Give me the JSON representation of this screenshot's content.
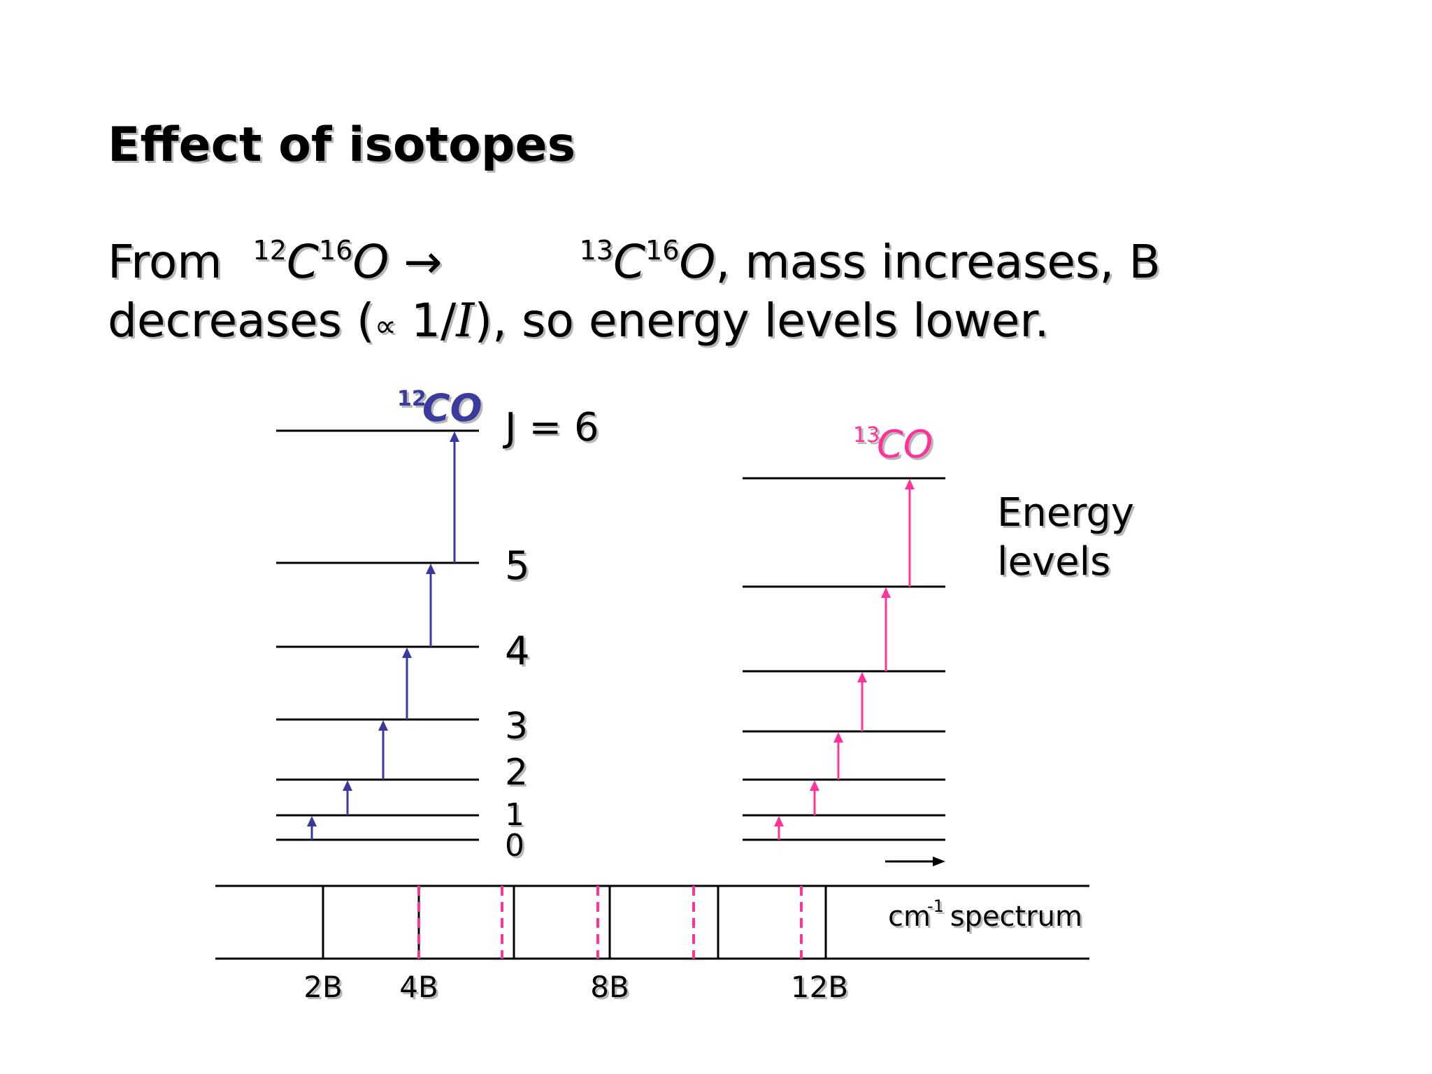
{
  "title": "Effect of isotopes",
  "body": {
    "from": "From",
    "iso12": {
      "sup_c": "12",
      "c": "C",
      "sup_o": "16",
      "o": "O"
    },
    "arrow": "→",
    "iso13": {
      "sup_c": "13",
      "c": "C",
      "sup_o": "16",
      "o": "O"
    },
    "line1_rest": ", mass increases, B",
    "line2_a": "decreases (",
    "propto": "∝",
    "line2_b": " 1/",
    "inertia": "I",
    "line2_c": "), so energy levels lower."
  },
  "diagram": {
    "left_label": {
      "sup": "12",
      "text": "CO",
      "color": "#3a3a9e"
    },
    "right_label": {
      "sup": "13",
      "text": "CO",
      "color": "#ff3399"
    },
    "j_labels": [
      "0",
      "1",
      "2",
      "3",
      "4",
      "5",
      "J = 6"
    ],
    "energy_label": [
      "Energy",
      "levels"
    ],
    "spectrum_label": {
      "text": "cm",
      "sup": "-1",
      "after": " spectrum"
    },
    "spectrum_ticks": [
      "2B",
      "4B",
      "8B",
      "12B"
    ]
  },
  "colors": {
    "co12": "#3a3a9e",
    "co13": "#ff3399",
    "text": "#000000",
    "shadow": "#b8b8b8"
  },
  "icons": {
    "direction_arrow": "right-arrow-icon"
  }
}
